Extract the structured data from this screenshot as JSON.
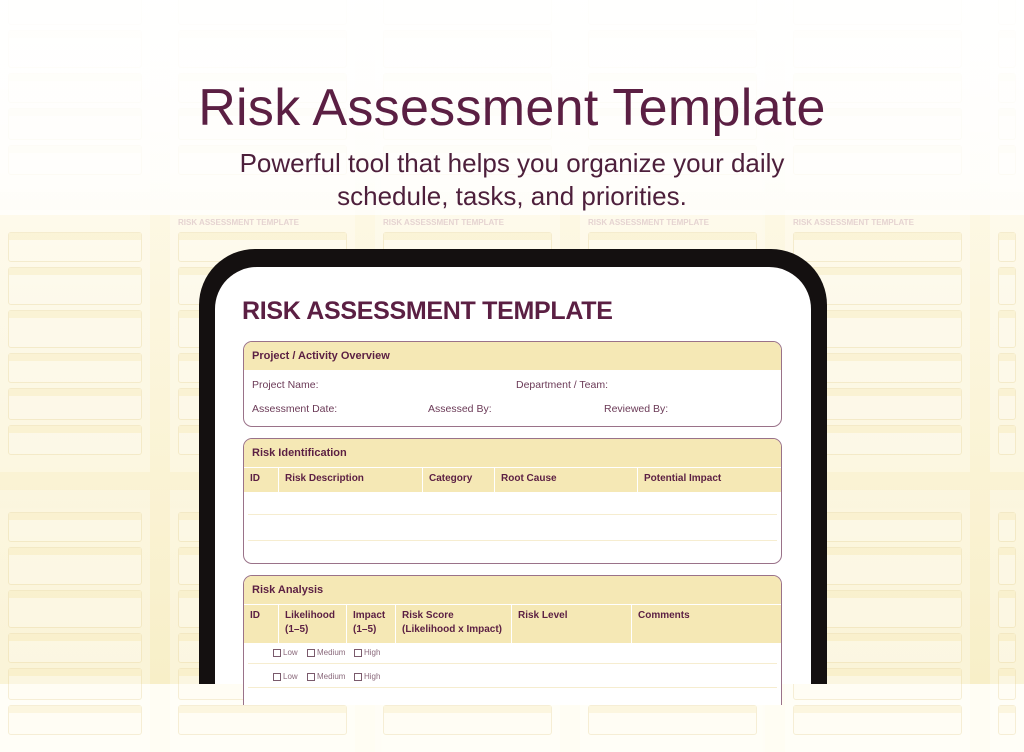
{
  "hero": {
    "title": "Risk Assessment Template",
    "subtitle_line1": "Powerful tool that helps you organize your daily",
    "subtitle_line2": "schedule, tasks, and priorities."
  },
  "background_tile_title": "RISK ASSESSMENT TEMPLATE",
  "document": {
    "title": "RISK ASSESSMENT TEMPLATE",
    "overview": {
      "heading": "Project / Activity Overview",
      "project_name": "Project Name:",
      "department": "Department / Team:",
      "assessment_date": "Assessment Date:",
      "assessed_by": "Assessed By:",
      "reviewed_by": "Reviewed By:"
    },
    "identification": {
      "heading": "Risk Identification",
      "columns": [
        "ID",
        "Risk Description",
        "Category",
        "Root Cause",
        "Potential Impact"
      ]
    },
    "analysis": {
      "heading": "Risk Analysis",
      "columns": [
        "ID",
        "Likelihood (1–5)",
        "Impact (1–5)",
        "Risk Score (Likelihood x Impact)",
        "Risk Level",
        "Comments"
      ],
      "risk_levels": [
        "Low",
        "Medium",
        "High"
      ]
    }
  },
  "colors": {
    "accent": "#5b1f43",
    "header_fill": "#f5e8b5",
    "frame": "#141010"
  }
}
